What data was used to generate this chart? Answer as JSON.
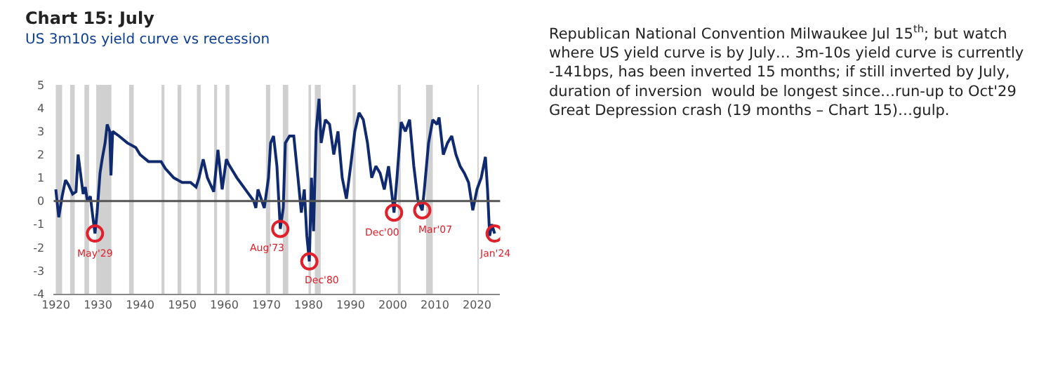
{
  "chart_data": {
    "type": "line",
    "title": "Chart 15: July",
    "subtitle": "US 3m10s yield curve vs recession",
    "x": [
      1920.0,
      1920.7,
      1921.5,
      1922.3,
      1923,
      1924,
      1924.8,
      1925.3,
      1926,
      1926.5,
      1927,
      1927.5,
      1928.2,
      1928.8,
      1929.3,
      1929.8,
      1930.5,
      1931,
      1931.7,
      1932.2,
      1932.8,
      1933.1,
      1933.5,
      1935,
      1937,
      1939,
      1940,
      1942,
      1945,
      1946,
      1948,
      1950,
      1952,
      1953.3,
      1954,
      1955,
      1956,
      1957.5,
      1958.5,
      1959.5,
      1960.5,
      1961,
      1963,
      1965,
      1967,
      1967.5,
      1968,
      1969.5,
      1970.5,
      1971,
      1971.7,
      1972.5,
      1973.3,
      1974,
      1974.5,
      1975.5,
      1976.5,
      1977.5,
      1978.3,
      1979,
      1979.6,
      1980.2,
      1980.7,
      1981.2,
      1981.8,
      1982.5,
      1983,
      1984,
      1985,
      1986,
      1987,
      1988,
      1989,
      1990,
      1991,
      1992,
      1993,
      1994,
      1995,
      1996,
      1997,
      1998,
      1999,
      2000.3,
      2001,
      2002,
      2003,
      2004,
      2005,
      2006,
      2007.0,
      2007.5,
      2008.5,
      2009.5,
      2010.5,
      2011,
      2012,
      2013,
      2014,
      2015,
      2016,
      2017,
      2018,
      2019,
      2020,
      2021,
      2022,
      2022.5,
      2023,
      2023.5,
      2024.2
    ],
    "series": [
      {
        "color": "#0f2a6e",
        "values": [
          0.5,
          -0.7,
          0.2,
          0.9,
          0.7,
          0.3,
          0.4,
          2.0,
          1.0,
          0.3,
          0.6,
          0.0,
          0.2,
          -0.7,
          -1.4,
          -0.5,
          1.2,
          1.8,
          2.5,
          3.3,
          3.0,
          1.1,
          3.0,
          2.8,
          2.5,
          2.3,
          2.0,
          1.7,
          1.7,
          1.4,
          1.0,
          0.8,
          0.8,
          0.6,
          1.0,
          1.8,
          1.0,
          0.4,
          2.2,
          0.5,
          1.8,
          1.6,
          1.0,
          0.5,
          0.0,
          -0.3,
          0.5,
          -0.3,
          1.0,
          2.5,
          2.8,
          1.5,
          -1.2,
          -0.3,
          2.5,
          2.8,
          2.8,
          1.0,
          -0.5,
          0.5,
          -1.5,
          -2.6,
          1.0,
          -1.3,
          3.0,
          4.4,
          2.5,
          3.5,
          3.3,
          2.0,
          3.0,
          1.0,
          0.1,
          1.5,
          3.0,
          3.8,
          3.5,
          2.5,
          1.0,
          1.5,
          1.2,
          0.5,
          1.5,
          -0.5,
          1.0,
          3.4,
          3.0,
          3.5,
          1.5,
          0.0,
          -0.4,
          0.5,
          2.5,
          3.5,
          3.3,
          3.6,
          2.0,
          2.5,
          2.8,
          2.0,
          1.5,
          1.2,
          0.8,
          -0.4,
          0.5,
          1.0,
          1.9,
          0.5,
          -1.5,
          -1.0,
          -1.4
        ]
      },
      {
        "type": "scatter",
        "marker": "circle",
        "color": "#e0202a",
        "x": [
          1929.3,
          1973.3,
          1980.2,
          2000.3,
          2007.0,
          2024.2
        ],
        "values": [
          -1.4,
          -1.2,
          -2.6,
          -0.5,
          -0.4,
          -1.4
        ]
      }
    ],
    "annotations": [
      {
        "text": "May'29",
        "x": 1929.3,
        "y": -1.4
      },
      {
        "text": "Aug'73",
        "x": 1973.3,
        "y": -1.2
      },
      {
        "text": "Dec'80",
        "x": 1980.2,
        "y": -2.6
      },
      {
        "text": "Dec'00",
        "x": 2000.3,
        "y": -0.5
      },
      {
        "text": "Mar'07",
        "x": 2007.0,
        "y": -0.4
      },
      {
        "text": "Jan'24",
        "x": 2024.2,
        "y": -1.4
      },
      "Republican National Convention Milwaukee Jul 15$^{th}$; but watch where US yield curve is by July… 3m-10s yield curve is currently -141bps, has been inverted 15 months; if still inverted by July, duration of inversion  would be longest since…run-up to Oct'29 Great Depression crash (19 months – Chart 15)…gulp."
    ],
    "ref_lines": [
      {
        "axis": "y",
        "value": 0,
        "color": "#555555"
      }
    ],
    "bands": [
      {
        "axis": "x",
        "from": 1920.0,
        "to": 1921.5,
        "color": "#d0d0d0"
      },
      {
        "axis": "x",
        "from": 1923.4,
        "to": 1924.5,
        "color": "#d0d0d0"
      },
      {
        "axis": "x",
        "from": 1926.8,
        "to": 1927.9,
        "color": "#d0d0d0"
      },
      {
        "axis": "x",
        "from": 1929.6,
        "to": 1933.2,
        "color": "#d0d0d0"
      },
      {
        "axis": "x",
        "from": 1937.4,
        "to": 1938.5,
        "color": "#d0d0d0"
      },
      {
        "axis": "x",
        "from": 1945.1,
        "to": 1945.8,
        "color": "#d0d0d0"
      },
      {
        "axis": "x",
        "from": 1948.9,
        "to": 1949.8,
        "color": "#d0d0d0"
      },
      {
        "axis": "x",
        "from": 1953.5,
        "to": 1954.4,
        "color": "#d0d0d0"
      },
      {
        "axis": "x",
        "from": 1957.6,
        "to": 1958.3,
        "color": "#d0d0d0"
      },
      {
        "axis": "x",
        "from": 1960.3,
        "to": 1961.2,
        "color": "#d0d0d0"
      },
      {
        "axis": "x",
        "from": 1969.9,
        "to": 1970.9,
        "color": "#d0d0d0"
      },
      {
        "axis": "x",
        "from": 1973.9,
        "to": 1975.2,
        "color": "#d0d0d0"
      },
      {
        "axis": "x",
        "from": 1980.0,
        "to": 1980.6,
        "color": "#d0d0d0"
      },
      {
        "axis": "x",
        "from": 1981.5,
        "to": 1982.9,
        "color": "#d0d0d0"
      },
      {
        "axis": "x",
        "from": 1990.5,
        "to": 1991.2,
        "color": "#d0d0d0"
      },
      {
        "axis": "x",
        "from": 2001.2,
        "to": 2001.9,
        "color": "#d0d0d0"
      },
      {
        "axis": "x",
        "from": 2007.9,
        "to": 2009.5,
        "color": "#d0d0d0"
      },
      {
        "axis": "x",
        "from": 2020.1,
        "to": 2020.4,
        "color": "#d0d0d0"
      }
    ],
    "xlim": [
      1919.5,
      2025.5
    ],
    "xticks": [
      1920,
      1930,
      1940,
      1950,
      1960,
      1970,
      1980,
      1990,
      2000,
      2010,
      2020
    ],
    "ylim": [
      -4,
      5
    ],
    "yticks": [
      -4,
      -3,
      -2,
      -1,
      0,
      1,
      2,
      3,
      4,
      5
    ],
    "grid": false,
    "marker": "none",
    "line_style": "solid"
  }
}
